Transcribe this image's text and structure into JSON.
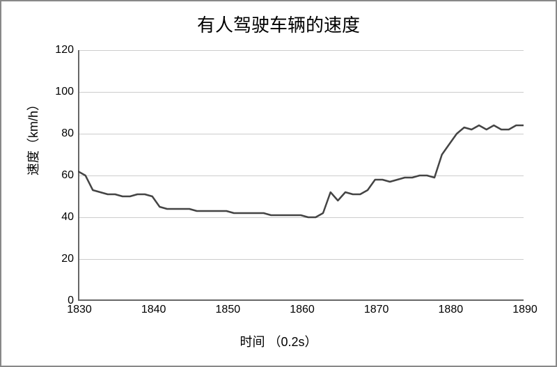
{
  "chart": {
    "type": "line",
    "title": "有人驾驶车辆的速度",
    "title_fontsize": 26,
    "xlabel": "时间 （0.2s）",
    "ylabel": "速度（km/h）",
    "label_fontsize": 18,
    "tick_fontsize": 16,
    "xlim": [
      1830,
      1890
    ],
    "ylim": [
      0,
      120
    ],
    "xtick_step": 10,
    "ytick_step": 20,
    "xticks": [
      1830,
      1840,
      1850,
      1860,
      1870,
      1880,
      1890
    ],
    "yticks": [
      0,
      20,
      40,
      60,
      80,
      100,
      120
    ],
    "background_color": "#ffffff",
    "grid_color": "#cccccc",
    "axis_color": "#666666",
    "line_color": "#444444",
    "line_width": 2.5,
    "grid_y_only": true,
    "x": [
      1830,
      1831,
      1832,
      1833,
      1834,
      1835,
      1836,
      1837,
      1838,
      1839,
      1840,
      1841,
      1842,
      1843,
      1844,
      1845,
      1846,
      1847,
      1848,
      1849,
      1850,
      1851,
      1852,
      1853,
      1854,
      1855,
      1856,
      1857,
      1858,
      1859,
      1860,
      1861,
      1862,
      1863,
      1864,
      1865,
      1866,
      1867,
      1868,
      1869,
      1870,
      1871,
      1872,
      1873,
      1874,
      1875,
      1876,
      1877,
      1878,
      1879,
      1880,
      1881,
      1882,
      1883,
      1884,
      1885,
      1886,
      1887,
      1888,
      1889,
      1890
    ],
    "y": [
      62,
      60,
      53,
      52,
      51,
      51,
      50,
      50,
      51,
      51,
      50,
      45,
      44,
      44,
      44,
      44,
      43,
      43,
      43,
      43,
      43,
      42,
      42,
      42,
      42,
      42,
      41,
      41,
      41,
      41,
      41,
      40,
      40,
      42,
      52,
      48,
      52,
      51,
      51,
      53,
      58,
      58,
      57,
      58,
      59,
      59,
      60,
      60,
      59,
      70,
      75,
      80,
      83,
      82,
      84,
      82,
      84,
      82,
      82,
      84,
      84
    ]
  }
}
